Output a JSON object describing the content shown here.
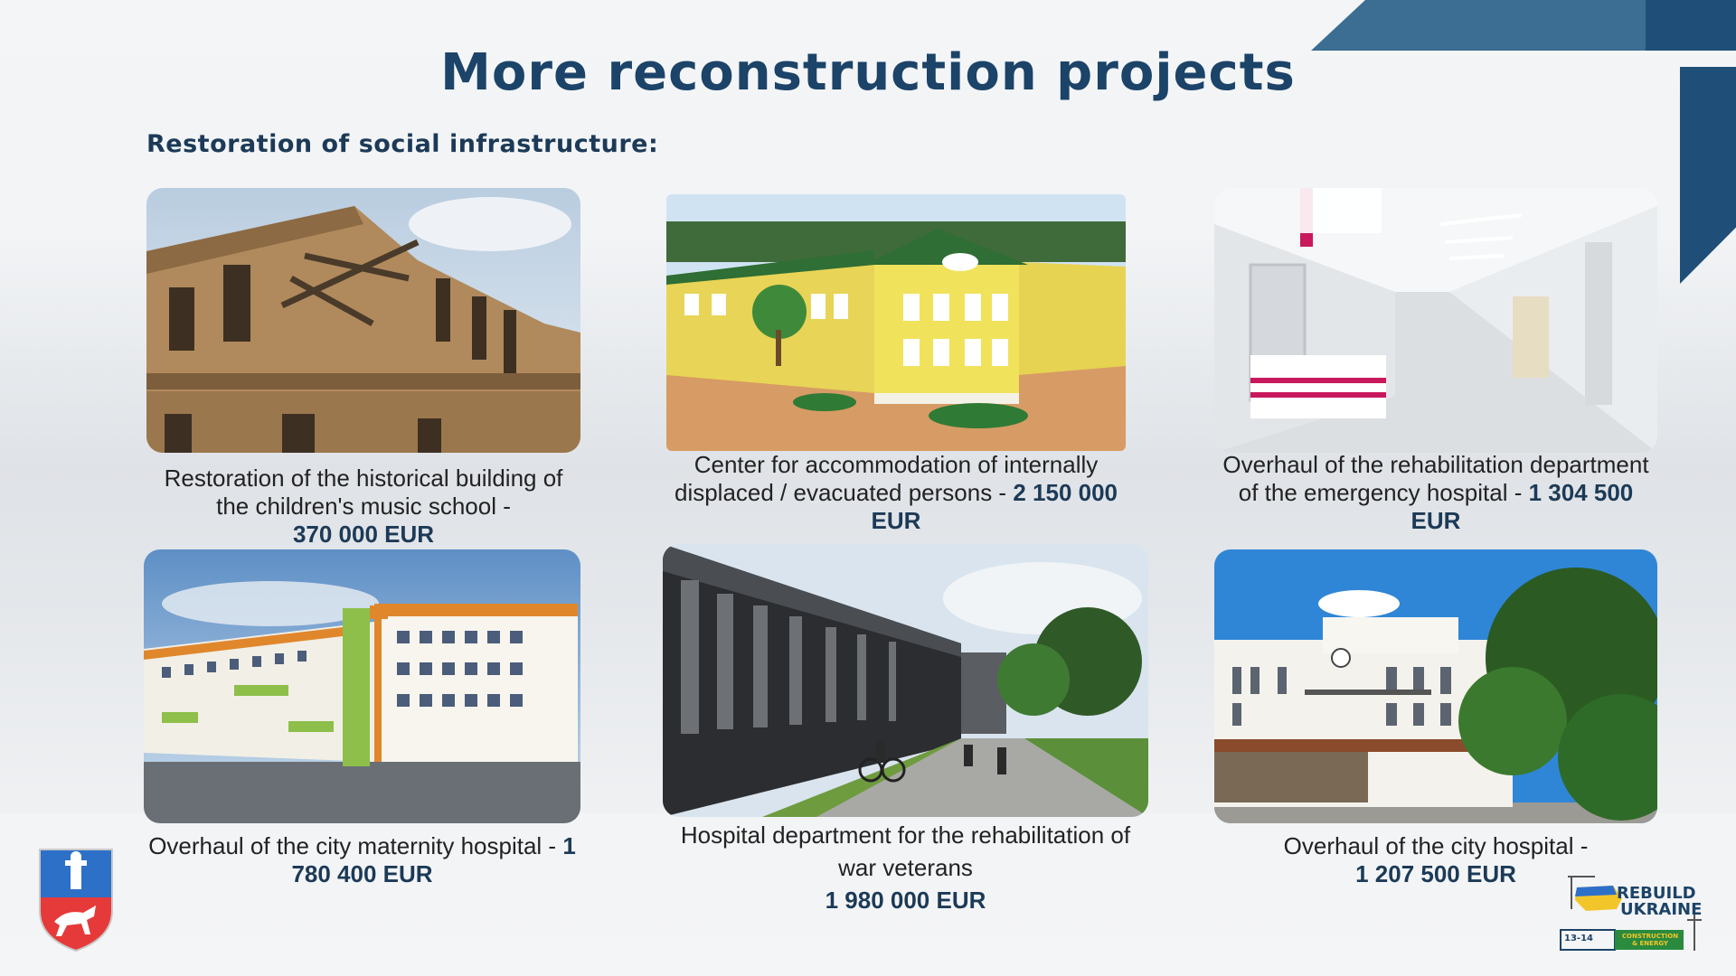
{
  "title": "More reconstruction projects",
  "subtitle": "Restoration of social infrastructure:",
  "projects": [
    {
      "text": "Restoration of the historical building of the children's music school -",
      "amount": "370 000 EUR",
      "image": "ruined-historic-brick-building-photo"
    },
    {
      "text": "Center for accommodation of internally displaced / evacuated persons -",
      "amount": "2 150 000 EUR",
      "image": "yellow-building-render"
    },
    {
      "text": "Overhaul of the rehabilitation department of the emergency hospital -",
      "amount": "1 304 500 EUR",
      "image": "hospital-corridor-reception-render"
    },
    {
      "text": "Overhaul of the city maternity hospital -",
      "amount": "1 780 400 EUR",
      "image": "maternity-hospital-render"
    },
    {
      "text": "Hospital department for the rehabilitation of war veterans",
      "amount": "1 980 000 EUR",
      "image": "modern-hospital-street-render"
    },
    {
      "text": "Overhaul of the city hospital -",
      "amount": "1 207 500 EUR",
      "image": "white-city-hospital-photo"
    }
  ],
  "logo": {
    "line1": "REBUILD",
    "line2": "UKRAINE",
    "dates": "13-14",
    "tag": "CONSTRUCTION & ENERGY"
  },
  "colors": {
    "title": "#1c4368",
    "accent_dark": "#1f4f78",
    "accent_light": "#3c6d92"
  }
}
